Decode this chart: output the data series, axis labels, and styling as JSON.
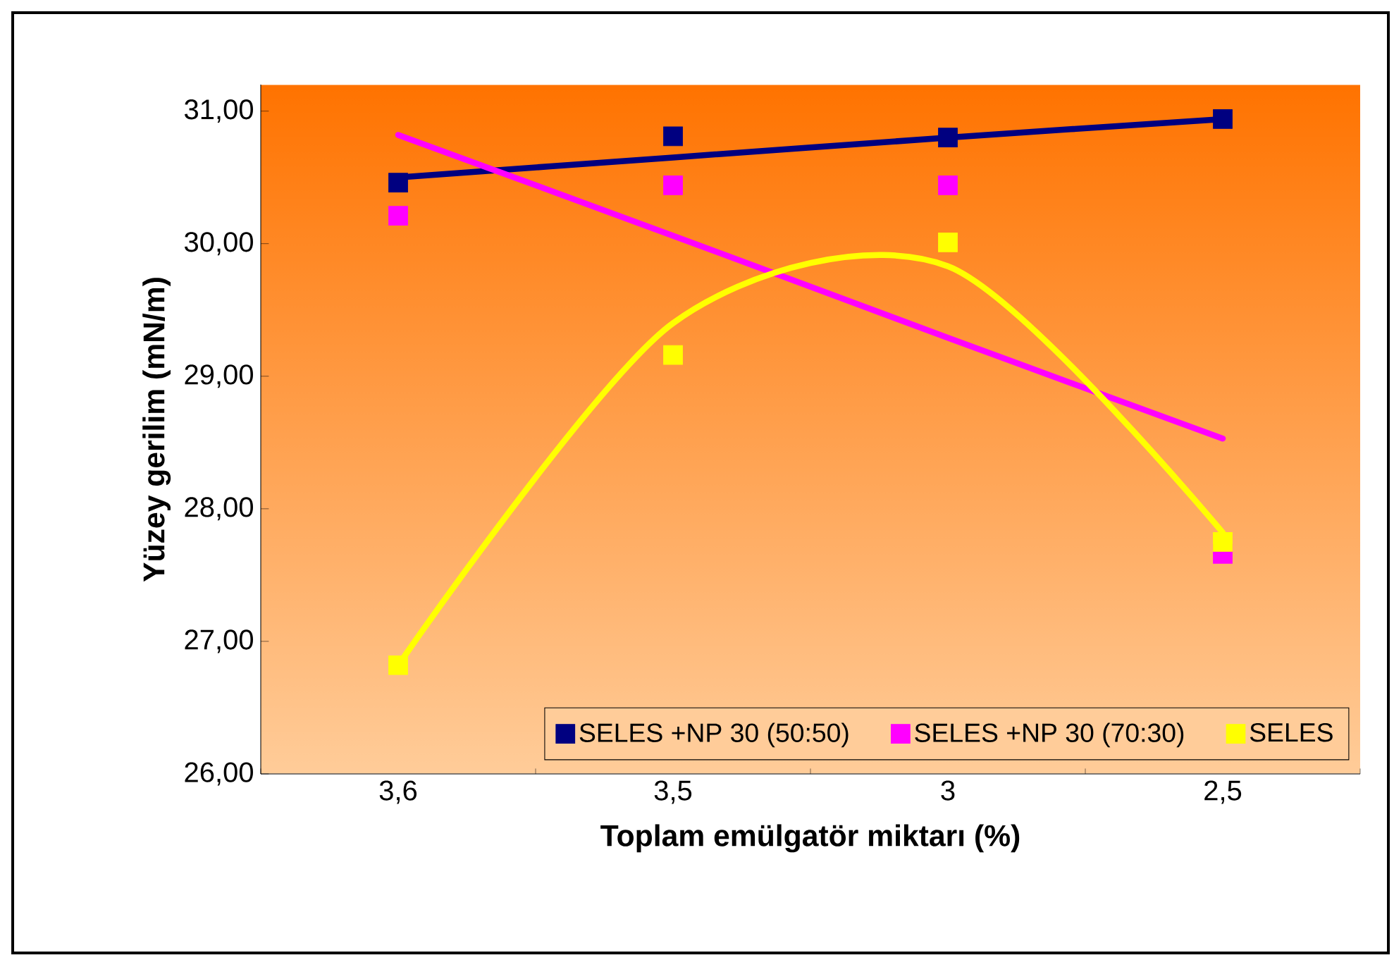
{
  "chart_data": {
    "type": "scatter",
    "xlabel": "Toplam emülgatör miktarı (%)",
    "ylabel": "Yüzey gerilim (mN/m)",
    "categories": [
      "3,6",
      "3,5",
      "3",
      "2,5"
    ],
    "ylim": [
      26,
      31.2
    ],
    "yticks": [
      {
        "value": 26,
        "label": "26,00"
      },
      {
        "value": 27,
        "label": "27,00"
      },
      {
        "value": 28,
        "label": "28,00"
      },
      {
        "value": 29,
        "label": "29,00"
      },
      {
        "value": 30,
        "label": "30,00"
      },
      {
        "value": 31,
        "label": "31,00"
      }
    ],
    "legend": "bottom right",
    "series": [
      {
        "name": "SELES +NP 30 (50:50)",
        "color": "#000080",
        "marker": "square",
        "values": [
          30.46,
          30.81,
          30.8,
          30.94
        ]
      },
      {
        "name": "SELES +NP 30 (70:30)",
        "color": "#ff00ff",
        "marker": "square",
        "values": [
          30.21,
          30.44,
          30.44,
          27.66
        ]
      },
      {
        "name": "SELES",
        "color": "#ffff00",
        "marker": "square",
        "values": [
          26.82,
          29.16,
          30.01,
          27.75
        ]
      },
      {
        "type": "line",
        "color": "#000080",
        "values": [
          30.5,
          30.65,
          30.8,
          30.94
        ]
      },
      {
        "type": "line",
        "color": "#ff00ff",
        "values": [
          30.82,
          30.06,
          29.29,
          28.53
        ]
      },
      {
        "type": "line",
        "color": "#ffff00",
        "values": [
          26.82,
          29.4,
          29.83,
          27.82
        ]
      }
    ]
  }
}
